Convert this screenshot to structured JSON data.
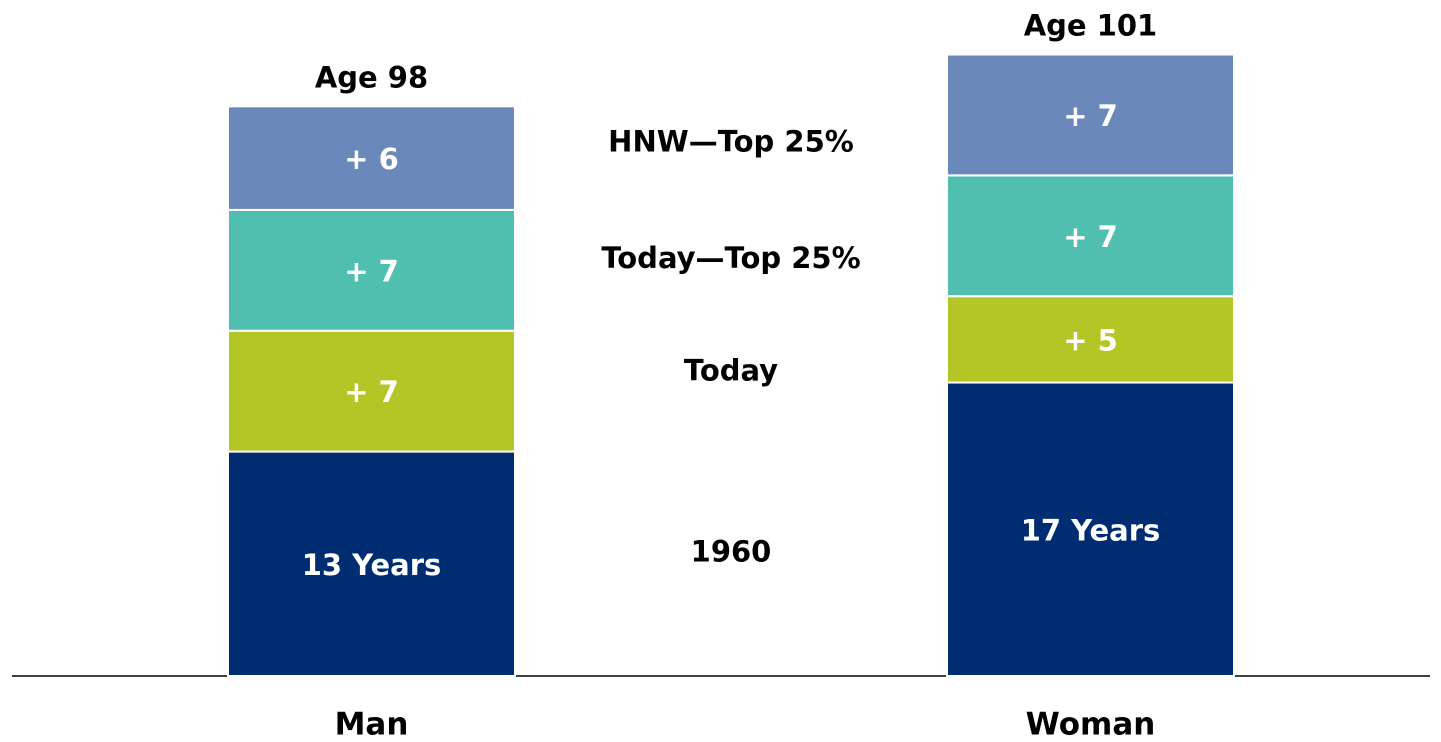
{
  "chart_data": {
    "type": "stacked_bar",
    "categories": [
      "Man",
      "Woman"
    ],
    "series": [
      {
        "name": "1960",
        "color": "#002d72",
        "values": [
          13,
          17
        ],
        "value_labels": [
          "13 Years",
          "17 Years"
        ]
      },
      {
        "name": "Today",
        "color": "#b3c626",
        "values": [
          7,
          5
        ],
        "value_labels": [
          "+ 7",
          "+ 5"
        ]
      },
      {
        "name": "Today—Top 25%",
        "color": "#50bfb0",
        "values": [
          7,
          7
        ],
        "value_labels": [
          "+ 7",
          "+ 7"
        ]
      },
      {
        "name": "HNW—Top 25%",
        "color": "#6a88ba",
        "values": [
          6,
          7
        ],
        "value_labels": [
          "+ 6",
          "+ 7"
        ]
      }
    ],
    "total_labels": [
      "Age 98",
      "Age 101"
    ],
    "ylim": [
      0,
      38
    ]
  }
}
